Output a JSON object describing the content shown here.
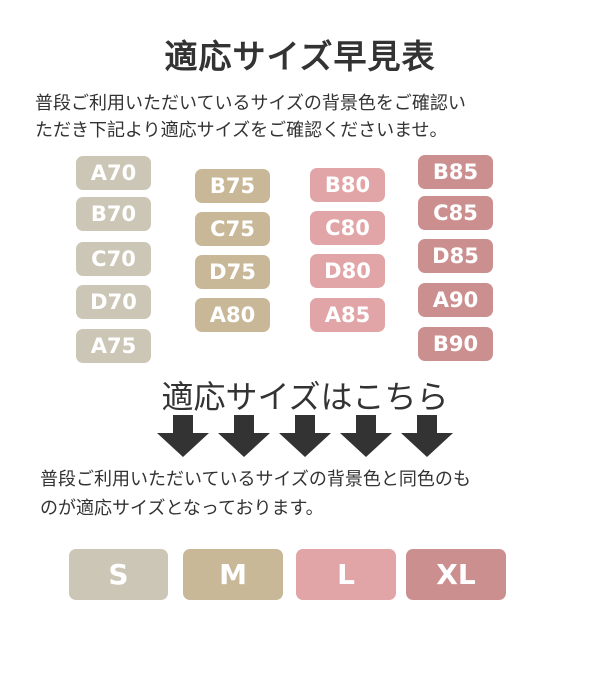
{
  "title": "適応サイズ早見表",
  "intro": [
    "普段ご利用いただいているサイズの背景色をご確認い",
    "ただき下記より適応サイズをご確認くださいませ。"
  ],
  "colors": {
    "S": "#cbc6b6",
    "M": "#c8b898",
    "L": "#e2a5a7",
    "XL": "#cc8f8f",
    "arrow": "#333333"
  },
  "columns": [
    {
      "size": "S",
      "items": [
        "A70",
        "B70",
        "C70",
        "D70",
        "A75"
      ]
    },
    {
      "size": "M",
      "items": [
        "B75",
        "C75",
        "D75",
        "A80"
      ]
    },
    {
      "size": "L",
      "items": [
        "B80",
        "C80",
        "D80",
        "A85"
      ]
    },
    {
      "size": "XL",
      "items": [
        "B85",
        "C85",
        "D85",
        "A90",
        "B90"
      ]
    }
  ],
  "subheading": "適応サイズはこちら",
  "arrow_icon": "arrow-down-icon",
  "note": [
    "普段ご利用いただいているサイズの背景色と同色のも",
    "のが適応サイズとなっております。"
  ],
  "sizes": [
    "S",
    "M",
    "L",
    "XL"
  ]
}
